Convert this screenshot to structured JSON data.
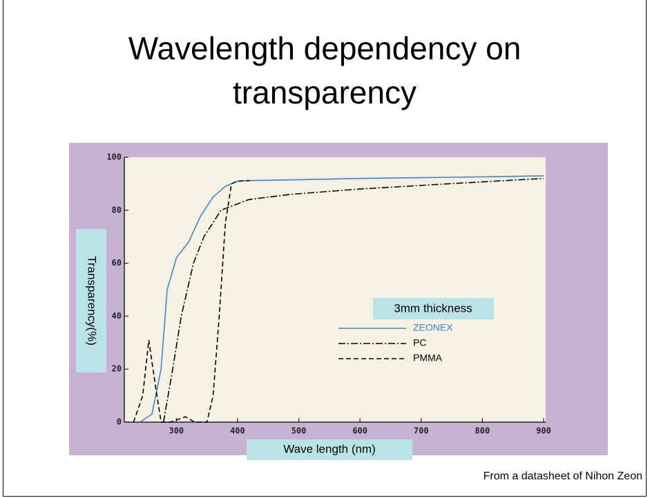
{
  "chart_data": {
    "type": "line",
    "title": "Wavelength dependency on transparency",
    "xlabel": "Wave length (nm)",
    "ylabel": "Transparency(%)",
    "legend_title": "3mm thickness",
    "source": "From a datasheet of Nihon Zeon",
    "xlim": [
      215,
      900
    ],
    "ylim": [
      0,
      100
    ],
    "xticks": [
      300,
      400,
      500,
      600,
      700,
      800,
      900
    ],
    "yticks": [
      0,
      20,
      40,
      60,
      80,
      100
    ],
    "series": [
      {
        "name": "ZEONEX",
        "color": "#3a86c8",
        "style": "solid",
        "x": [
          240,
          260,
          275,
          285,
          300,
          320,
          340,
          360,
          380,
          400,
          420,
          500,
          600,
          700,
          800,
          900
        ],
        "values": [
          0,
          3,
          20,
          50,
          62,
          68,
          78,
          85,
          89,
          91,
          91.2,
          91.5,
          92,
          92.3,
          92.6,
          93
        ]
      },
      {
        "name": "PC",
        "color": "#000000",
        "style": "dashdot",
        "x": [
          279,
          294,
          308,
          328,
          345,
          373,
          418,
          486,
          599,
          745,
          900
        ],
        "values": [
          0,
          20,
          40,
          60,
          70,
          80,
          84,
          86,
          88,
          90,
          92
        ]
      },
      {
        "name": "PMMA",
        "color": "#000000",
        "style": "dashed",
        "x": [
          230,
          245,
          255,
          265,
          275,
          290,
          315,
          330,
          350,
          360,
          370,
          380,
          390,
          400,
          420
        ],
        "values": [
          0,
          10,
          31,
          15,
          0,
          0,
          2,
          0,
          0,
          10,
          40,
          75,
          90,
          91,
          91.2
        ]
      }
    ]
  }
}
